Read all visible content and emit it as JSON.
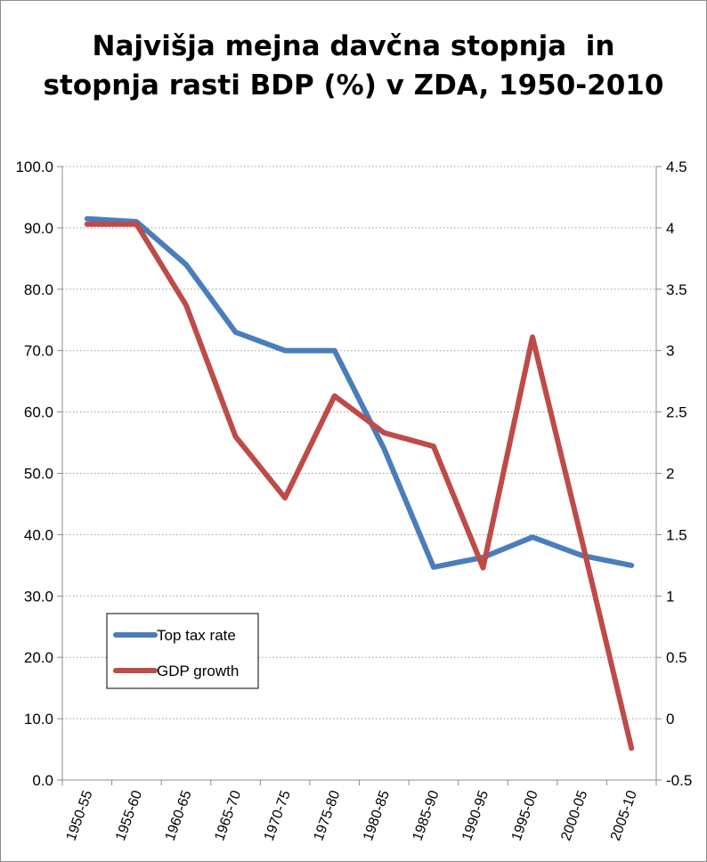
{
  "chart_data": {
    "type": "line",
    "title_lines": [
      "Najvišja mejna davčna stopnja  in",
      "stopnja rasti BDP (%) v ZDA, 1950-2010"
    ],
    "categories": [
      "1950-55",
      "1955-60",
      "1960-65",
      "1965-70",
      "1970-75",
      "1975-80",
      "1980-85",
      "1985-90",
      "1990-95",
      "1995-00",
      "2000-05",
      "2005-10"
    ],
    "left_axis": {
      "min": 0,
      "max": 100,
      "step": 10,
      "tick_labels": [
        "0.0",
        "10.0",
        "20.0",
        "30.0",
        "40.0",
        "50.0",
        "60.0",
        "70.0",
        "80.0",
        "90.0",
        "100.0"
      ]
    },
    "right_axis": {
      "min": -0.5,
      "max": 4.5,
      "step": 0.5,
      "tick_labels": [
        "-0.5",
        "0",
        "0.5",
        "1",
        "1.5",
        "2",
        "2.5",
        "3",
        "3.5",
        "4",
        "4.5"
      ]
    },
    "grid": true,
    "series": [
      {
        "name": "Top tax rate",
        "axis": "left",
        "color": "#4a7ebb",
        "values": [
          91.5,
          91.0,
          84.0,
          73.0,
          70.0,
          70.0,
          54.0,
          34.7,
          36.3,
          39.6,
          36.6,
          35.0
        ]
      },
      {
        "name": "GDP growth",
        "axis": "right",
        "color": "#be4b48",
        "values": [
          4.03,
          4.03,
          3.37,
          2.3,
          1.8,
          2.63,
          2.33,
          2.22,
          1.23,
          3.11,
          1.45,
          -0.24
        ]
      }
    ],
    "legend_position": "bottom-left"
  }
}
